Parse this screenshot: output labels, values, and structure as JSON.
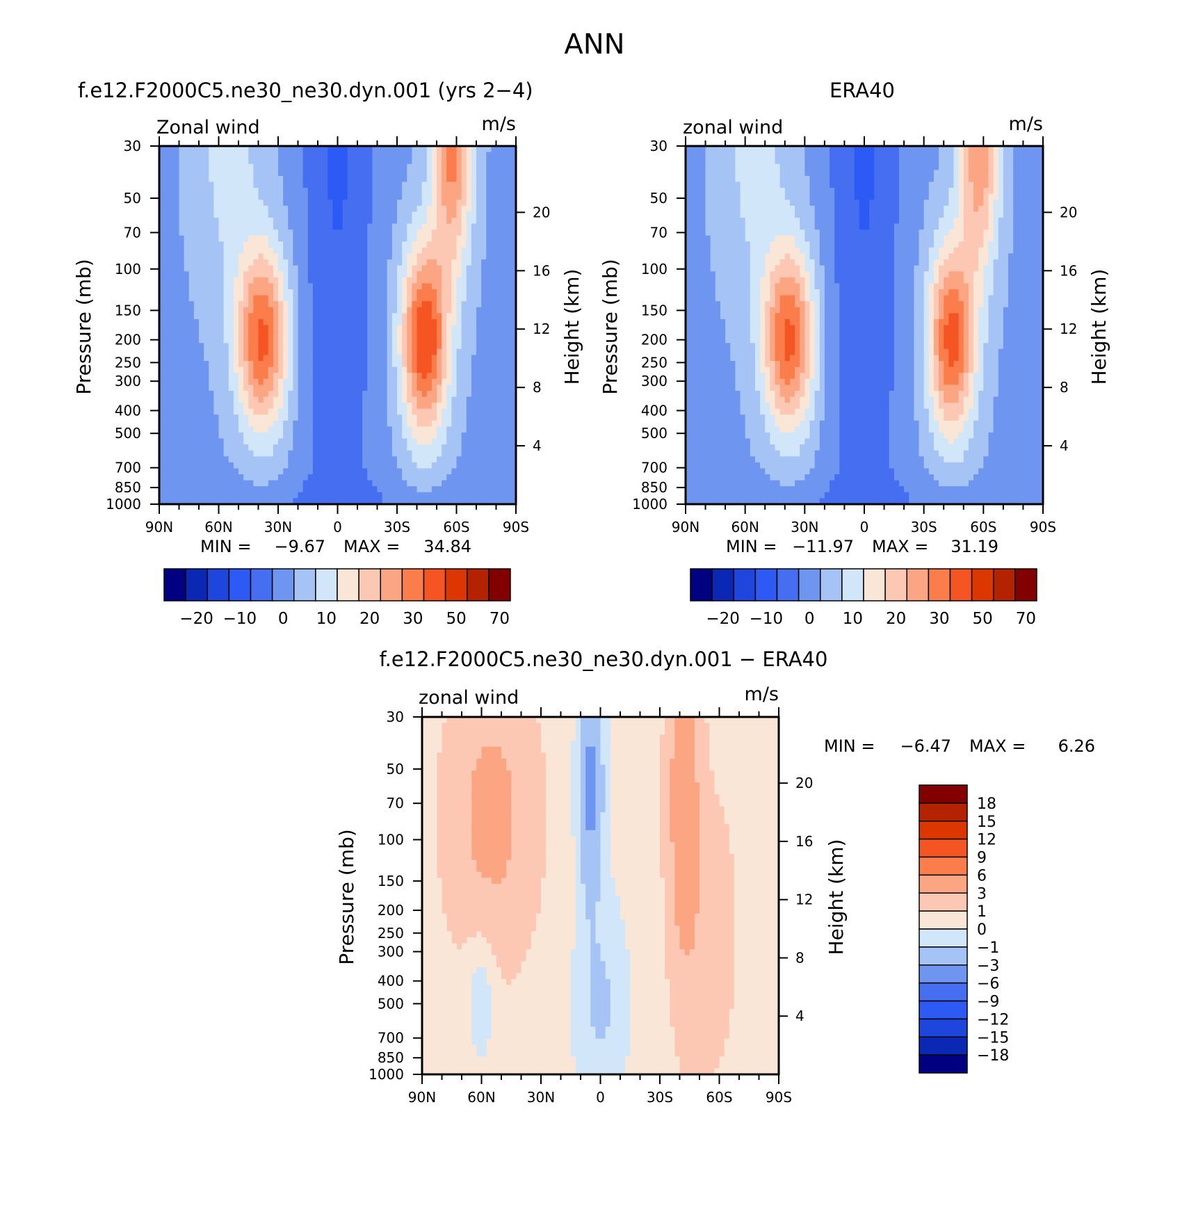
{
  "figure": {
    "title": "ANN"
  },
  "panels": [
    {
      "id": "model",
      "title": "f.e12.F2000C5.ne30_ne30.dyn.001 (yrs 2−4)",
      "left_label": "Zonal wind",
      "right_label": "m/s",
      "ylabel": "Pressure (mb)",
      "y2label": "Height (km)",
      "stats": {
        "min_label": "MIN =",
        "min": "−9.67",
        "max_label": "MAX =",
        "max": "34.84"
      }
    },
    {
      "id": "obs",
      "title": "ERA40",
      "left_label": "zonal wind",
      "right_label": "m/s",
      "ylabel": "Pressure (mb)",
      "y2label": "Height (km)",
      "stats": {
        "min_label": "MIN =",
        "min": "−11.97",
        "max_label": "MAX =",
        "max": "31.19"
      }
    },
    {
      "id": "diff",
      "title": "f.e12.F2000C5.ne30_ne30.dyn.001 − ERA40",
      "left_label": "zonal wind",
      "right_label": "m/s",
      "ylabel": "Pressure (mb)",
      "y2label": "Height (km)",
      "stats": {
        "min_label": "MIN =",
        "min": "−6.47",
        "max_label": "MAX =",
        "max": "6.26"
      }
    }
  ],
  "chart_data": [
    {
      "type": "heatmap",
      "subtype": "filled-contour, latitude-pressure cross-section",
      "title": "f.e12.F2000C5.ne30_ne30.dyn.001 (yrs 2−4)",
      "xlabel": "",
      "ylabel": "Pressure (mb)",
      "y2label": "Height (km)",
      "units": "m/s",
      "x_ticks": [
        "90N",
        "60N",
        "30N",
        "0",
        "30S",
        "60S",
        "90S"
      ],
      "x_values": [
        90,
        60,
        30,
        0,
        -30,
        -60,
        -90
      ],
      "y_ticks": [
        30,
        50,
        70,
        100,
        150,
        200,
        250,
        300,
        400,
        500,
        700,
        850,
        1000
      ],
      "y_scale": "log",
      "y_reversed": true,
      "y2_ticks": [
        4,
        8,
        12,
        16,
        20
      ],
      "min": -9.67,
      "max": 34.84,
      "colorbar": {
        "orientation": "horizontal",
        "tick_labels": [
          "−20",
          "−10",
          "0",
          "10",
          "20",
          "30",
          "50",
          "70"
        ],
        "colors": [
          "#000080",
          "#0a28b4",
          "#1e46dc",
          "#2d5af5",
          "#466ef0",
          "#6e96f0",
          "#a5c3f5",
          "#d2e6fa",
          "#fae6d7",
          "#fcc8b4",
          "#fca582",
          "#fa7d4b",
          "#f55523",
          "#dc3700",
          "#b42300",
          "#820000"
        ]
      }
    },
    {
      "type": "heatmap",
      "subtype": "filled-contour, latitude-pressure cross-section",
      "title": "ERA40",
      "xlabel": "",
      "ylabel": "Pressure (mb)",
      "y2label": "Height (km)",
      "units": "m/s",
      "x_ticks": [
        "90N",
        "60N",
        "30N",
        "0",
        "30S",
        "60S",
        "90S"
      ],
      "x_values": [
        90,
        60,
        30,
        0,
        -30,
        -60,
        -90
      ],
      "y_ticks": [
        30,
        50,
        70,
        100,
        150,
        200,
        250,
        300,
        400,
        500,
        700,
        850,
        1000
      ],
      "y_scale": "log",
      "y_reversed": true,
      "y2_ticks": [
        4,
        8,
        12,
        16,
        20
      ],
      "min": -11.97,
      "max": 31.19,
      "colorbar": {
        "orientation": "horizontal",
        "tick_labels": [
          "−20",
          "−10",
          "0",
          "10",
          "20",
          "30",
          "50",
          "70"
        ],
        "colors": [
          "#000080",
          "#0a28b4",
          "#1e46dc",
          "#2d5af5",
          "#466ef0",
          "#6e96f0",
          "#a5c3f5",
          "#d2e6fa",
          "#fae6d7",
          "#fcc8b4",
          "#fca582",
          "#fa7d4b",
          "#f55523",
          "#dc3700",
          "#b42300",
          "#820000"
        ]
      }
    },
    {
      "type": "heatmap",
      "subtype": "filled-contour, latitude-pressure cross-section",
      "title": "f.e12.F2000C5.ne30_ne30.dyn.001 − ERA40",
      "xlabel": "",
      "ylabel": "Pressure (mb)",
      "y2label": "Height (km)",
      "units": "m/s",
      "x_ticks": [
        "90N",
        "60N",
        "30N",
        "0",
        "30S",
        "60S",
        "90S"
      ],
      "x_values": [
        90,
        60,
        30,
        0,
        -30,
        -60,
        -90
      ],
      "y_ticks": [
        30,
        50,
        70,
        100,
        150,
        200,
        250,
        300,
        400,
        500,
        700,
        850,
        1000
      ],
      "y_scale": "log",
      "y_reversed": true,
      "y2_ticks": [
        4,
        8,
        12,
        16,
        20
      ],
      "min": -6.47,
      "max": 6.26,
      "colorbar": {
        "orientation": "vertical",
        "tick_labels": [
          "18",
          "15",
          "12",
          "9",
          "6",
          "3",
          "1",
          "0",
          "−1",
          "−3",
          "−6",
          "−9",
          "−12",
          "−15",
          "−18"
        ],
        "colors": [
          "#820000",
          "#b42300",
          "#dc3700",
          "#f55523",
          "#fa7d4b",
          "#fca582",
          "#fcc8b4",
          "#fae6d7",
          "#d2e6fa",
          "#a5c3f5",
          "#6e96f0",
          "#466ef0",
          "#2d5af5",
          "#1e46dc",
          "#0a28b4",
          "#000080"
        ]
      }
    }
  ]
}
